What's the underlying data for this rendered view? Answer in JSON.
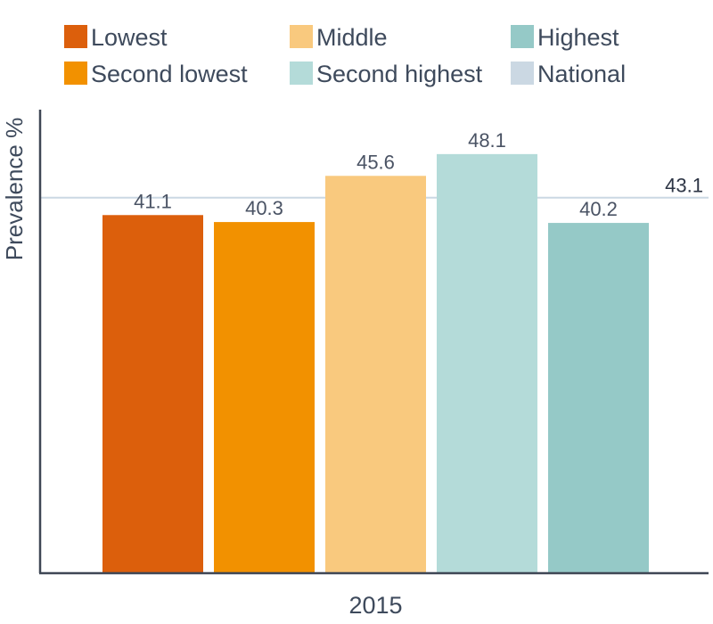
{
  "chart_data": {
    "type": "bar",
    "categories": [
      "2015"
    ],
    "series": [
      {
        "name": "Lowest",
        "color": "#dc5f0c",
        "values": [
          41.1
        ]
      },
      {
        "name": "Second lowest",
        "color": "#f29100",
        "values": [
          40.3
        ]
      },
      {
        "name": "Middle",
        "color": "#f9c97e",
        "values": [
          45.6
        ]
      },
      {
        "name": "Second highest",
        "color": "#b4dbd9",
        "values": [
          48.1
        ]
      },
      {
        "name": "Highest",
        "color": "#95c9c7",
        "values": [
          40.2
        ]
      }
    ],
    "reference_line": {
      "name": "National",
      "value": 43.1,
      "label": "43.1",
      "color": "#cbd8e3"
    },
    "ylabel": "Prevalence %",
    "xlabel": "",
    "ylim": [
      0,
      53.2
    ],
    "grid": false,
    "legend_position": "top"
  }
}
